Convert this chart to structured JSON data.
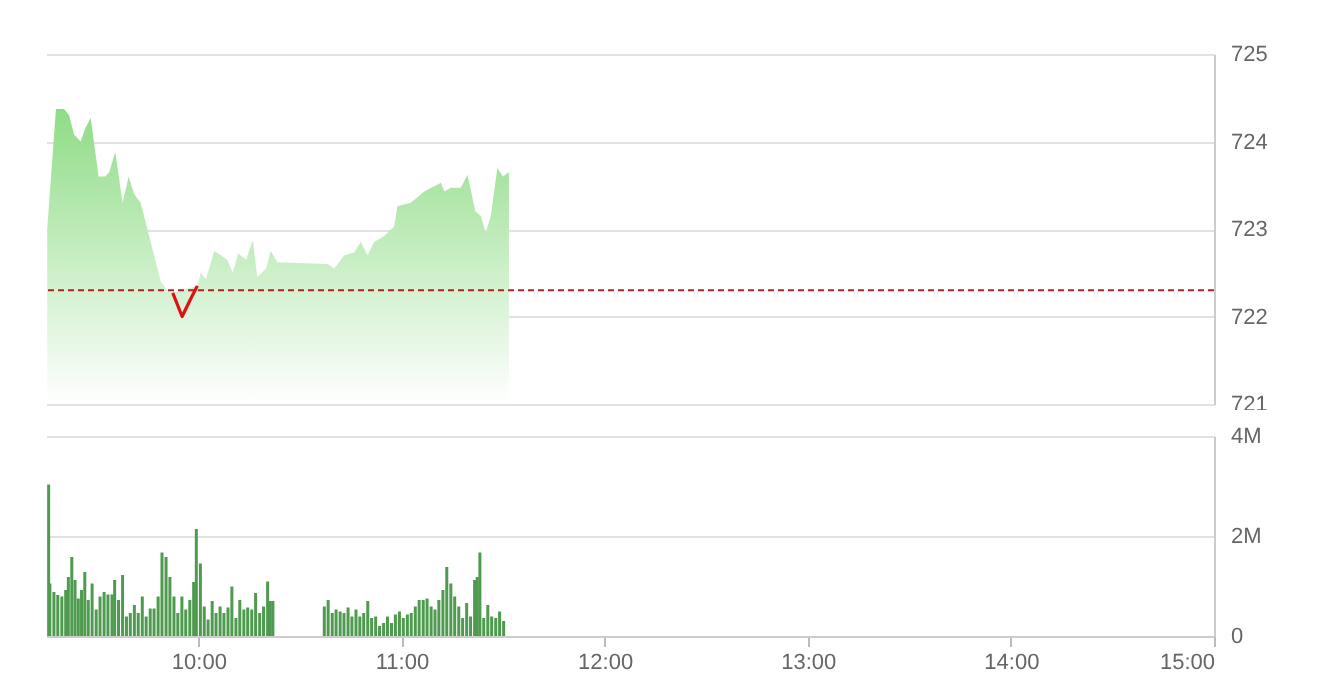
{
  "chart_data": [
    {
      "type": "area",
      "xlim": [
        9.25,
        15
      ],
      "ylim": [
        721,
        725
      ],
      "yticks": [
        721,
        722,
        723,
        724,
        725
      ],
      "tick_labels": "y",
      "grid": "y",
      "series": [
        {
          "color": "#8fdc86",
          "x": [
            9.256,
            9.299,
            9.339,
            9.364,
            9.388,
            9.42,
            9.443,
            9.47,
            9.509,
            9.542,
            9.561,
            9.591,
            9.627,
            9.657,
            9.684,
            9.716,
            9.749,
            9.815,
            9.847,
            9.874,
            9.995,
            10.012,
            10.038,
            10.078,
            10.143,
            10.169,
            10.196,
            10.235,
            10.268,
            10.29,
            10.334,
            10.356,
            10.389,
            10.635,
            10.669,
            10.718,
            10.767,
            10.8,
            10.832,
            10.866,
            10.915,
            10.964,
            10.98,
            11.046,
            11.112,
            11.194,
            11.211,
            11.243,
            11.292,
            11.325,
            11.364,
            11.391,
            11.414,
            11.44,
            11.472,
            11.499,
            11.529
          ],
          "values": [
            723.0,
            724.37,
            724.37,
            724.3,
            724.08,
            724.0,
            724.15,
            724.27,
            723.6,
            723.6,
            723.65,
            723.88,
            723.3,
            723.6,
            723.4,
            723.3,
            723.0,
            722.4,
            722.3,
            722.27,
            722.35,
            722.5,
            722.43,
            722.75,
            722.65,
            722.5,
            722.72,
            722.65,
            722.87,
            722.45,
            722.55,
            722.75,
            722.62,
            722.6,
            722.55,
            722.7,
            722.73,
            722.85,
            722.7,
            722.85,
            722.92,
            723.03,
            723.26,
            723.3,
            723.43,
            723.53,
            723.43,
            723.47,
            723.47,
            723.62,
            723.2,
            723.15,
            722.96,
            723.15,
            723.7,
            723.6,
            723.65
          ]
        },
        {
          "type": "line",
          "color": "#dd1111",
          "x": [
            9.874,
            9.92,
            9.962,
            9.995
          ],
          "values": [
            722.27,
            722.0,
            722.2,
            722.35
          ]
        }
      ],
      "ref_lines": [
        {
          "axis": "y",
          "value": 722.3,
          "color": "#b22222",
          "line_style": "dashed"
        }
      ]
    },
    {
      "type": "bar",
      "xlim": [
        9.25,
        15
      ],
      "ylim": [
        0,
        4
      ],
      "yticks": [
        0,
        {
          "value": 2,
          "label": "2M"
        },
        {
          "value": 4,
          "label": "4M"
        }
      ],
      "xticks": [
        {
          "value": 10,
          "label": "10:00"
        },
        {
          "value": 11,
          "label": "11:00"
        },
        {
          "value": 12,
          "label": "12:00"
        },
        {
          "value": 13,
          "label": "13:00"
        },
        {
          "value": 14,
          "label": "14:00"
        },
        {
          "value": 15,
          "label": "15:00"
        }
      ],
      "grid": "y",
      "series": [
        {
          "color": "#4e9a4e",
          "x": [
            9.263,
            9.269,
            9.289,
            9.308,
            9.328,
            9.347,
            9.36,
            9.377,
            9.393,
            9.409,
            9.425,
            9.441,
            9.458,
            9.477,
            9.497,
            9.516,
            9.536,
            9.555,
            9.575,
            9.588,
            9.607,
            9.627,
            9.646,
            9.665,
            9.685,
            9.704,
            9.724,
            9.743,
            9.763,
            9.782,
            9.802,
            9.821,
            9.841,
            9.86,
            9.88,
            9.899,
            9.919,
            9.938,
            9.958,
            9.977,
            9.99,
            10.01,
            10.029,
            10.048,
            10.068,
            10.087,
            10.107,
            10.126,
            10.146,
            10.165,
            10.185,
            10.204,
            10.224,
            10.243,
            10.263,
            10.282,
            10.302,
            10.321,
            10.341,
            10.354,
            10.367,
            10.62,
            10.639,
            10.659,
            10.678,
            10.698,
            10.717,
            10.737,
            10.756,
            10.776,
            10.795,
            10.814,
            10.834,
            10.853,
            10.873,
            10.892,
            10.912,
            10.931,
            10.951,
            10.97,
            10.99,
            11.009,
            11.029,
            11.048,
            11.068,
            11.087,
            11.107,
            11.126,
            11.146,
            11.165,
            11.184,
            11.204,
            11.223,
            11.243,
            11.262,
            11.282,
            11.301,
            11.321,
            11.34,
            11.36,
            11.373,
            11.386,
            11.405,
            11.425,
            11.444,
            11.464,
            11.483,
            11.503
          ],
          "values": [
            3.03,
            1.05,
            0.88,
            0.82,
            0.79,
            0.92,
            1.18,
            1.58,
            1.12,
            0.75,
            0.92,
            1.28,
            0.72,
            1.05,
            0.53,
            0.79,
            0.88,
            0.83,
            0.83,
            1.12,
            0.72,
            1.22,
            0.39,
            0.46,
            0.62,
            0.46,
            0.79,
            0.39,
            0.55,
            0.55,
            0.79,
            1.67,
            1.58,
            1.18,
            0.79,
            0.46,
            0.79,
            0.53,
            0.72,
            1.08,
            2.14,
            1.45,
            0.59,
            0.33,
            0.7,
            0.46,
            0.59,
            0.46,
            0.57,
            0.99,
            0.36,
            0.72,
            0.53,
            0.57,
            0.53,
            0.86,
            0.46,
            0.59,
            1.09,
            0.7,
            0.7,
            0.59,
            0.72,
            0.46,
            0.53,
            0.49,
            0.46,
            0.57,
            0.39,
            0.53,
            0.39,
            0.46,
            0.7,
            0.36,
            0.39,
            0.2,
            0.26,
            0.39,
            0.26,
            0.43,
            0.49,
            0.36,
            0.43,
            0.46,
            0.59,
            0.72,
            0.72,
            0.75,
            0.59,
            0.53,
            0.72,
            0.92,
            1.38,
            1.05,
            0.79,
            0.59,
            0.36,
            0.66,
            0.39,
            1.12,
            1.18,
            1.67,
            0.36,
            0.62,
            0.39,
            0.36,
            0.49,
            0.3
          ]
        }
      ]
    }
  ]
}
